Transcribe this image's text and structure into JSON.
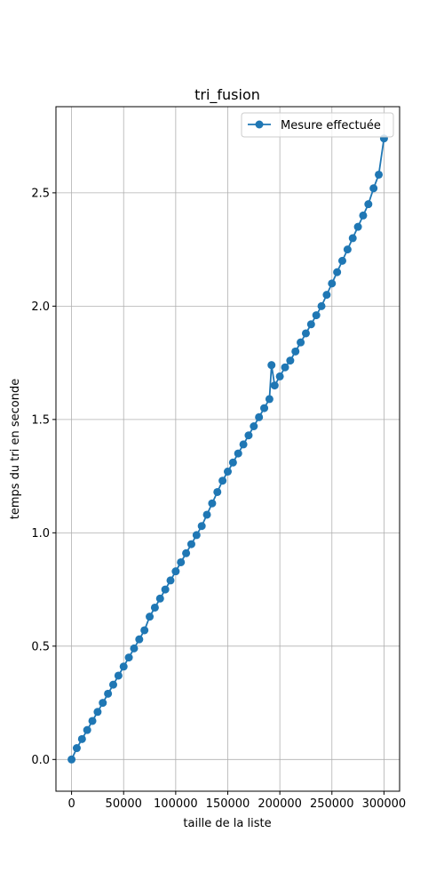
{
  "chart_data": {
    "type": "line",
    "title": "tri_fusion",
    "xlabel": "taille de la liste",
    "ylabel": "temps du tri en seconde",
    "xlim": [
      -15000,
      315000
    ],
    "ylim": [
      -0.14,
      2.88
    ],
    "xticks": [
      0,
      50000,
      100000,
      150000,
      200000,
      250000,
      300000
    ],
    "xtick_labels": [
      "0",
      "50000",
      "100000",
      "150000",
      "200000",
      "250000",
      "300000"
    ],
    "yticks": [
      0.0,
      0.5,
      1.0,
      1.5,
      2.0,
      2.5
    ],
    "ytick_labels": [
      "0.0",
      "0.5",
      "1.0",
      "1.5",
      "2.0",
      "2.5"
    ],
    "grid": true,
    "legend_position": "top-right",
    "series": [
      {
        "name": "Mesure effectuée",
        "color": "#1f77b4",
        "marker": "circle",
        "x": [
          0,
          5000,
          10000,
          15000,
          20000,
          25000,
          30000,
          35000,
          40000,
          45000,
          50000,
          55000,
          60000,
          65000,
          70000,
          75000,
          80000,
          85000,
          90000,
          95000,
          100000,
          105000,
          110000,
          115000,
          120000,
          125000,
          130000,
          135000,
          140000,
          145000,
          150000,
          155000,
          160000,
          165000,
          170000,
          175000,
          180000,
          185000,
          190000,
          192000,
          195000,
          200000,
          205000,
          210000,
          215000,
          220000,
          225000,
          230000,
          235000,
          240000,
          245000,
          250000,
          255000,
          260000,
          265000,
          270000,
          275000,
          280000,
          285000,
          290000,
          295000,
          300000
        ],
        "y": [
          0.0,
          0.05,
          0.09,
          0.13,
          0.17,
          0.21,
          0.25,
          0.29,
          0.33,
          0.37,
          0.41,
          0.45,
          0.49,
          0.53,
          0.57,
          0.63,
          0.67,
          0.71,
          0.75,
          0.79,
          0.83,
          0.87,
          0.91,
          0.95,
          0.99,
          1.03,
          1.08,
          1.13,
          1.18,
          1.23,
          1.27,
          1.31,
          1.35,
          1.39,
          1.43,
          1.47,
          1.51,
          1.55,
          1.59,
          1.74,
          1.65,
          1.69,
          1.73,
          1.76,
          1.8,
          1.84,
          1.88,
          1.92,
          1.96,
          2.0,
          2.05,
          2.1,
          2.15,
          2.2,
          2.25,
          2.3,
          2.35,
          2.4,
          2.45,
          2.52,
          2.58,
          2.74
        ]
      }
    ]
  }
}
